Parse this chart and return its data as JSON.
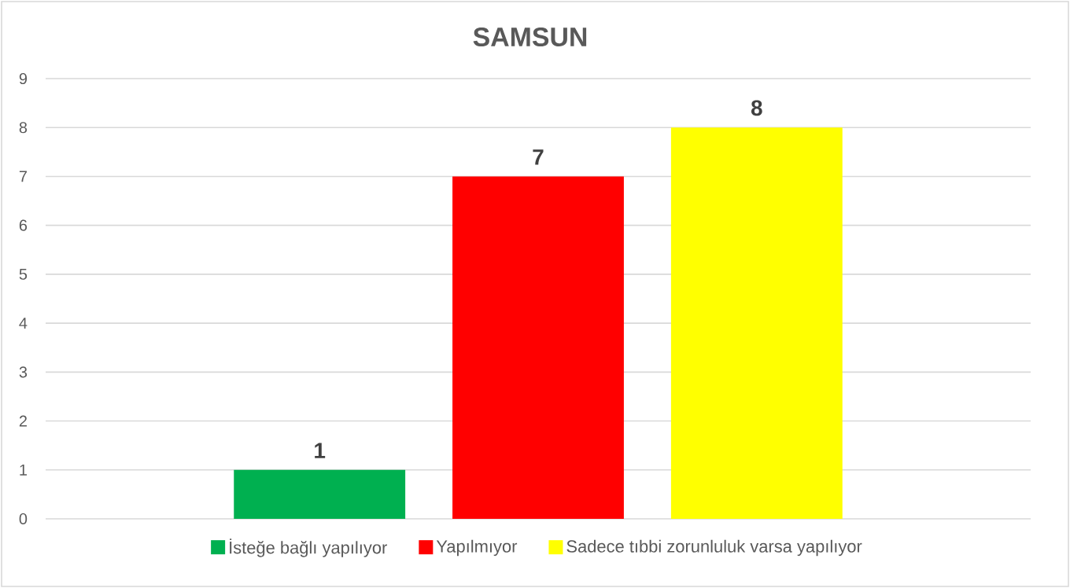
{
  "chart_data": {
    "type": "bar",
    "title": "SAMSUN",
    "categories": [
      null
    ],
    "series": [
      {
        "name": "İsteğe bağlı yapılıyor",
        "color": "#00b050",
        "values": [
          1
        ]
      },
      {
        "name": "Yapılmıyor",
        "color": "#ff0000",
        "values": [
          7
        ]
      },
      {
        "name": "Sadece tıbbi zorunluluk varsa yapılıyor",
        "color": "#ffff00",
        "values": [
          8
        ]
      }
    ],
    "ylim": [
      0,
      9
    ],
    "yticks": [
      0,
      1,
      2,
      3,
      4,
      5,
      6,
      7,
      8,
      9
    ],
    "grid": "y",
    "legend": "bottom",
    "data_labels": true
  }
}
